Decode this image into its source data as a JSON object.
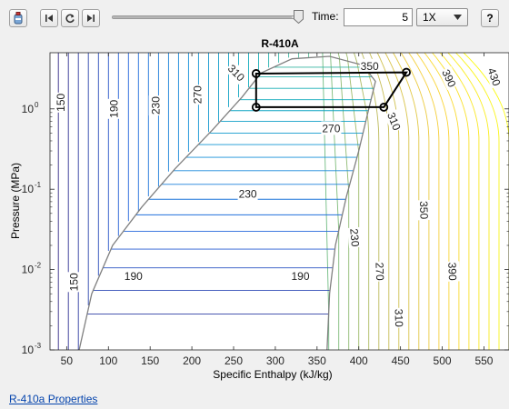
{
  "toolbar": {
    "app_icon": "refrigerant-cylinder-icon",
    "buttons": [
      "step-back-icon",
      "replay-icon",
      "step-forward-icon",
      "help-icon"
    ],
    "help_label": "?",
    "slider_fraction": 0.96
  },
  "time": {
    "label": "Time:",
    "value": "5"
  },
  "speed": {
    "selected": "1X"
  },
  "chart_data": {
    "type": "line",
    "title": "R-410A",
    "xlabel": "Specific Enthalpy (kJ/kg)",
    "ylabel": "Pressure (MPa)",
    "xlim": [
      30,
      580
    ],
    "ylim": [
      0.001,
      5
    ],
    "yscale": "log",
    "xticks": [
      50,
      100,
      150,
      200,
      250,
      300,
      350,
      400,
      450,
      500,
      550
    ],
    "yticks": [
      {
        "value": 0.001,
        "base": "10",
        "exp": "-3"
      },
      {
        "value": 0.01,
        "base": "10",
        "exp": "-2"
      },
      {
        "value": 0.1,
        "base": "10",
        "exp": "-1"
      },
      {
        "value": 1,
        "base": "10",
        "exp": "0"
      }
    ],
    "isotherm_labels": [
      {
        "text": "150",
        "h": 43,
        "p": 1.2,
        "rot": -90
      },
      {
        "text": "190",
        "h": 107,
        "p": 1.0,
        "rot": -90
      },
      {
        "text": "230",
        "h": 157,
        "p": 1.1,
        "rot": -90
      },
      {
        "text": "270",
        "h": 207,
        "p": 1.5,
        "rot": -90
      },
      {
        "text": "310",
        "h": 253,
        "p": 2.8,
        "rot": 45
      },
      {
        "text": "350",
        "h": 413,
        "p": 3.4,
        "rot": 0
      },
      {
        "text": "390",
        "h": 508,
        "p": 2.4,
        "rot": 65
      },
      {
        "text": "430",
        "h": 562,
        "p": 2.5,
        "rot": 70
      },
      {
        "text": "270",
        "h": 367,
        "p": 0.57,
        "rot": 0
      },
      {
        "text": "310",
        "h": 442,
        "p": 0.7,
        "rot": 68
      },
      {
        "text": "230",
        "h": 267,
        "p": 0.087,
        "rot": 0
      },
      {
        "text": "350",
        "h": 478,
        "p": 0.055,
        "rot": 88
      },
      {
        "text": "190",
        "h": 130,
        "p": 0.0082,
        "rot": 0
      },
      {
        "text": "190",
        "h": 330,
        "p": 0.0082,
        "rot": 0
      },
      {
        "text": "230",
        "h": 395,
        "p": 0.025,
        "rot": 85
      },
      {
        "text": "270",
        "h": 425,
        "p": 0.0095,
        "rot": 88
      },
      {
        "text": "390",
        "h": 512,
        "p": 0.0095,
        "rot": 88
      },
      {
        "text": "310",
        "h": 448,
        "p": 0.0025,
        "rot": 88
      },
      {
        "text": "150",
        "h": 59,
        "p": 0.007,
        "rot": -90
      }
    ],
    "saturation_dome": {
      "color": "#808080",
      "points": [
        [
          65,
          0.001
        ],
        [
          80,
          0.005
        ],
        [
          105,
          0.02
        ],
        [
          140,
          0.06
        ],
        [
          180,
          0.18
        ],
        [
          225,
          0.55
        ],
        [
          260,
          1.4
        ],
        [
          283,
          2.8
        ],
        [
          320,
          4.2
        ],
        [
          365,
          4.5
        ],
        [
          405,
          3.5
        ],
        [
          420,
          2.2
        ],
        [
          412,
          1.0
        ],
        [
          400,
          0.3
        ],
        [
          385,
          0.08
        ],
        [
          372,
          0.02
        ],
        [
          365,
          0.005
        ],
        [
          362,
          0.001
        ]
      ]
    },
    "isobar_levels": [
      0.0028,
      0.0055,
      0.0105,
      0.018,
      0.03,
      0.048,
      0.075,
      0.115,
      0.17,
      0.25,
      0.36,
      0.5,
      0.7,
      0.95,
      1.3,
      1.8,
      2.5,
      3.3
    ],
    "cycle": {
      "color": "#000000",
      "points": [
        [
          277,
          2.75
        ],
        [
          457,
          2.85
        ],
        [
          430,
          1.05
        ],
        [
          277,
          1.05
        ]
      ],
      "markers": [
        [
          277,
          2.75
        ],
        [
          457,
          2.85
        ],
        [
          430,
          1.05
        ],
        [
          277,
          1.05
        ]
      ]
    }
  },
  "footer": {
    "link": "R-410a Properties"
  }
}
